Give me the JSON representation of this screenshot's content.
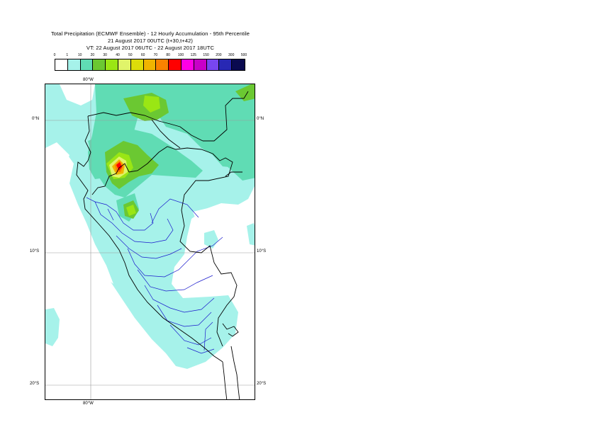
{
  "header": {
    "title_line1": "Total Precipitation (ECMWF Ensemble) - 12 Hourly Accumulation - 95th Percentile",
    "title_line2": "21 August 2017 00UTC (t+30,t+42)",
    "title_line3": "VT: 22 August 2017 06UTC - 22 August 2017 18UTC"
  },
  "legend": {
    "thresholds": [
      "0",
      "1",
      "10",
      "20",
      "30",
      "40",
      "50",
      "60",
      "70",
      "80",
      "100",
      "125",
      "150",
      "200",
      "300",
      "500"
    ],
    "colors": [
      "#ffffff",
      "#a6f2ea",
      "#60dcb4",
      "#6bc832",
      "#9ae614",
      "#e0f46a",
      "#dcdc0a",
      "#f0b400",
      "#fa8200",
      "#ff0000",
      "#ff00e6",
      "#c800c8",
      "#7846f0",
      "#2828b4",
      "#0a0a50"
    ]
  },
  "map": {
    "lon_label_top": "80°W",
    "lon_label_bottom": "80°W",
    "lat_labels_left": [
      "0°N",
      "10°S",
      "20°S"
    ],
    "lat_labels_right": [
      "0°N",
      "10°S",
      "20°S"
    ]
  }
}
